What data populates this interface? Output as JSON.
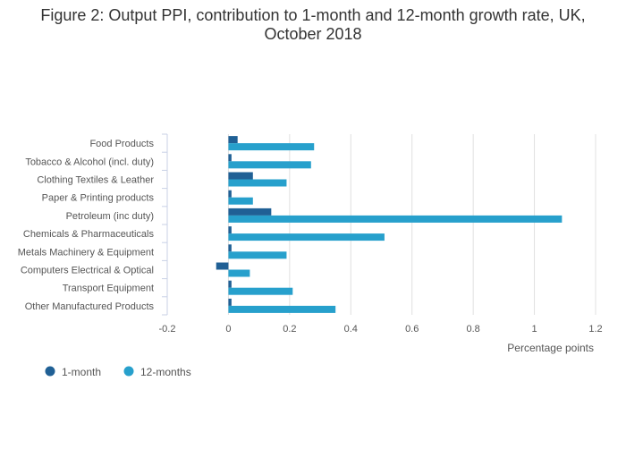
{
  "chart_data": {
    "type": "bar",
    "orientation": "horizontal",
    "title": "Figure 2: Output PPI, contribution to 1-month and 12-month growth rate, UK, October 2018",
    "xlabel": "Percentage points",
    "ylabel": "",
    "xlim": [
      -0.2,
      1.2
    ],
    "xticks": [
      -0.2,
      0,
      0.2,
      0.4,
      0.6,
      0.8,
      1,
      1.2
    ],
    "grid": true,
    "legend_position": "bottom-left",
    "categories": [
      "Food Products",
      "Tobacco & Alcohol (incl. duty)",
      "Clothing Textiles & Leather",
      "Paper & Printing products",
      "Petroleum (inc duty)",
      "Chemicals & Pharmaceuticals",
      "Metals Machinery & Equipment",
      "Computers Electrical & Optical",
      "Transport Equipment",
      "Other Manufactured Products"
    ],
    "series": [
      {
        "name": "1-month",
        "color": "#206095",
        "values": [
          0.03,
          0.01,
          0.08,
          0.01,
          0.14,
          0.01,
          0.01,
          -0.04,
          0.01,
          0.01
        ]
      },
      {
        "name": "12-months",
        "color": "#27a0cc",
        "values": [
          0.28,
          0.27,
          0.19,
          0.08,
          1.09,
          0.51,
          0.19,
          0.07,
          0.21,
          0.35
        ]
      }
    ]
  }
}
